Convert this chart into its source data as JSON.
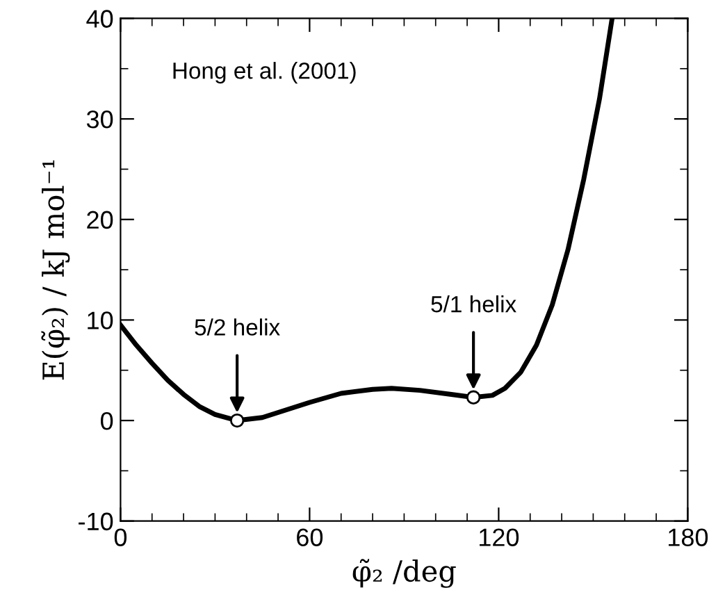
{
  "chart_data": {
    "type": "line",
    "xlabel": "φ̃₂ /deg",
    "ylabel": "E(φ̃₂) / kJ mol⁻¹",
    "series": [
      {
        "color": "#000000",
        "x": [
          0,
          5,
          10,
          15,
          20,
          25,
          30,
          37,
          45,
          50,
          60,
          70,
          80,
          86,
          95,
          105,
          112,
          118,
          122,
          127,
          132,
          137,
          142,
          147,
          152,
          156
        ],
        "values": [
          9.5,
          7.5,
          5.7,
          4.0,
          2.6,
          1.4,
          0.6,
          0,
          0.3,
          0.8,
          1.8,
          2.7,
          3.1,
          3.2,
          3.0,
          2.6,
          2.3,
          2.5,
          3.2,
          4.8,
          7.5,
          11.5,
          17,
          24,
          32,
          40
        ]
      },
      {
        "type": "scatter",
        "color": "#ffffff",
        "marker": "circle",
        "x": [
          37,
          112
        ],
        "values": [
          0,
          2.3
        ]
      }
    ],
    "annotations": [
      "Hong et al. (2001)",
      {
        "text": "5/2 helix",
        "x": 37,
        "y": 0
      },
      {
        "text": "5/1 helix",
        "x": 112,
        "y": 2.3
      }
    ],
    "xlim": [
      0,
      180
    ],
    "ylim": [
      -10,
      40
    ],
    "xticks": [
      0,
      {
        "value": 10,
        "label": null
      },
      {
        "value": 20,
        "label": null
      },
      {
        "value": 30,
        "label": null
      },
      {
        "value": 40,
        "label": null
      },
      {
        "value": 50,
        "label": null
      },
      60,
      {
        "value": 70,
        "label": null
      },
      {
        "value": 80,
        "label": null
      },
      {
        "value": 90,
        "label": null
      },
      {
        "value": 100,
        "label": null
      },
      {
        "value": 110,
        "label": null
      },
      120,
      {
        "value": 130,
        "label": null
      },
      {
        "value": 140,
        "label": null
      },
      {
        "value": 150,
        "label": null
      },
      {
        "value": 160,
        "label": null
      },
      {
        "value": 170,
        "label": null
      },
      180
    ],
    "yticks": [
      -10,
      {
        "value": -5,
        "label": null
      },
      0,
      {
        "value": 5,
        "label": null
      },
      10,
      {
        "value": 15,
        "label": null
      },
      20,
      {
        "value": 25,
        "label": null
      },
      30,
      {
        "value": 35,
        "label": null
      },
      40
    ],
    "grid": false,
    "legend": false
  }
}
